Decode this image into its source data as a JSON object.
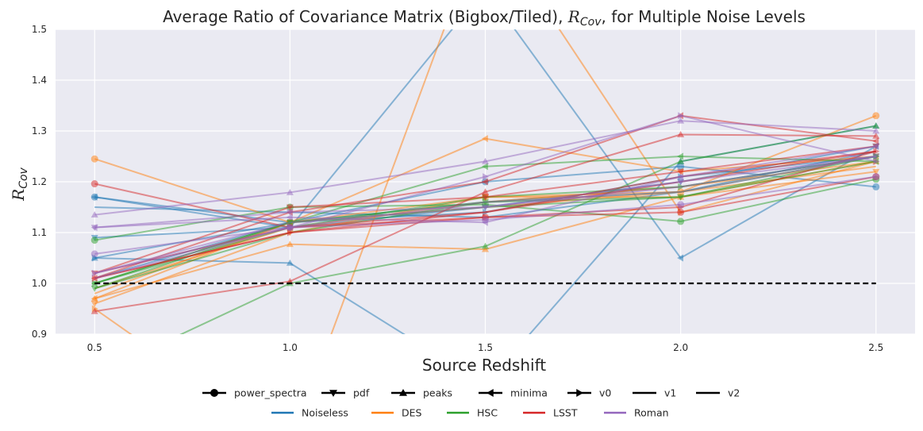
{
  "chart_data": {
    "type": "line",
    "title_main": "Average Ratio of Covariance Matrix (Bigbox/Tiled), ",
    "title_symbol": "R",
    "title_subscript": "Cov",
    "title_suffix": ", for Multiple Noise Levels",
    "xlabel": "Source Redshift",
    "ylabel_symbol": "R",
    "ylabel_subscript": "Cov",
    "x": [
      0.5,
      1.0,
      1.5,
      2.0,
      2.5
    ],
    "x_ticks": [
      "0.5",
      "1.0",
      "1.5",
      "2.0",
      "2.5"
    ],
    "y_ticks": [
      "0.9",
      "1.0",
      "1.1",
      "1.2",
      "1.3",
      "1.4",
      "1.5"
    ],
    "xlim": [
      0.4,
      2.6
    ],
    "ylim": [
      0.9,
      1.5
    ],
    "grid": true,
    "reference_line": {
      "y": 1.0,
      "style": "dashed",
      "color": "#000000"
    },
    "noise_colors": {
      "Noiseless": "#1f77b4",
      "DES": "#ff7f0e",
      "HSC": "#2ca02c",
      "LSST": "#d62728",
      "Roman": "#9467bd"
    },
    "legend_markers": [
      {
        "label": "power_spectra",
        "marker": "circle"
      },
      {
        "label": "pdf",
        "marker": "triangle-down"
      },
      {
        "label": "peaks",
        "marker": "triangle-up"
      },
      {
        "label": "minima",
        "marker": "triangle-left"
      },
      {
        "label": "v0",
        "marker": "triangle-right"
      },
      {
        "label": "v1",
        "marker": "none"
      },
      {
        "label": "v2",
        "marker": "none"
      }
    ],
    "legend_noise": [
      "Noiseless",
      "DES",
      "HSC",
      "LSST",
      "Roman"
    ],
    "legend_placement": "bottom-center",
    "series": [
      {
        "noise": "Noiseless",
        "statistic": "power_spectra",
        "marker": "circle",
        "values": [
          1.17,
          1.12,
          1.2,
          1.23,
          1.19
        ]
      },
      {
        "noise": "Noiseless",
        "statistic": "pdf",
        "marker": "triangle-down",
        "values": [
          1.09,
          1.11,
          1.15,
          1.2,
          1.27
        ]
      },
      {
        "noise": "Noiseless",
        "statistic": "peaks",
        "marker": "triangle-up",
        "values": [
          1.05,
          1.04,
          0.8,
          1.24,
          1.31
        ]
      },
      {
        "noise": "Noiseless",
        "statistic": "minima",
        "marker": "triangle-left",
        "values": [
          1.17,
          1.11,
          1.58,
          1.05,
          1.27
        ]
      },
      {
        "noise": "Noiseless",
        "statistic": "v0",
        "marker": "triangle-right",
        "values": [
          1.05,
          1.12,
          1.14,
          1.21,
          1.25
        ]
      },
      {
        "noise": "Noiseless",
        "statistic": "v1",
        "marker": "none",
        "values": [
          1.15,
          1.14,
          1.13,
          1.18,
          1.26
        ]
      },
      {
        "noise": "Noiseless",
        "statistic": "v2",
        "marker": "none",
        "values": [
          1.01,
          1.12,
          1.16,
          1.19,
          1.25
        ]
      },
      {
        "noise": "DES",
        "statistic": "power_spectra",
        "marker": "circle",
        "values": [
          1.245,
          1.12,
          1.17,
          1.18,
          1.33
        ]
      },
      {
        "noise": "DES",
        "statistic": "pdf",
        "marker": "triangle-down",
        "values": [
          0.96,
          1.1,
          1.17,
          1.17,
          1.22
        ]
      },
      {
        "noise": "DES",
        "statistic": "peaks",
        "marker": "triangle-up",
        "values": [
          0.97,
          1.077,
          1.067,
          1.17,
          1.24
        ]
      },
      {
        "noise": "DES",
        "statistic": "minima",
        "marker": "triangle-left",
        "values": [
          0.97,
          1.12,
          1.285,
          1.22,
          1.25
        ]
      },
      {
        "noise": "DES",
        "statistic": "v0",
        "marker": "triangle-right",
        "values": [
          0.95,
          0.68,
          1.72,
          1.14,
          1.24
        ]
      },
      {
        "noise": "DES",
        "statistic": "v1",
        "marker": "none",
        "values": [
          0.98,
          1.12,
          1.15,
          1.18,
          1.23
        ]
      },
      {
        "noise": "DES",
        "statistic": "v2",
        "marker": "none",
        "values": [
          0.99,
          1.11,
          1.16,
          1.19,
          1.24
        ]
      },
      {
        "noise": "HSC",
        "statistic": "power_spectra",
        "marker": "circle",
        "values": [
          1.085,
          1.15,
          1.155,
          1.122,
          1.205
        ]
      },
      {
        "noise": "HSC",
        "statistic": "pdf",
        "marker": "triangle-down",
        "values": [
          0.99,
          1.12,
          1.16,
          1.17,
          1.25
        ]
      },
      {
        "noise": "HSC",
        "statistic": "peaks",
        "marker": "triangle-up",
        "values": [
          0.82,
          1.0,
          1.073,
          1.24,
          1.31
        ]
      },
      {
        "noise": "HSC",
        "statistic": "minima",
        "marker": "triangle-left",
        "values": [
          1.0,
          1.12,
          1.23,
          1.25,
          1.24
        ]
      },
      {
        "noise": "HSC",
        "statistic": "v0",
        "marker": "triangle-right",
        "values": [
          1.0,
          1.11,
          1.17,
          1.19,
          1.25
        ]
      },
      {
        "noise": "HSC",
        "statistic": "v1",
        "marker": "none",
        "values": [
          1.0,
          1.12,
          1.15,
          1.17,
          1.24
        ]
      },
      {
        "noise": "HSC",
        "statistic": "v2",
        "marker": "none",
        "values": [
          0.99,
          1.1,
          1.16,
          1.18,
          1.25
        ]
      },
      {
        "noise": "LSST",
        "statistic": "power_spectra",
        "marker": "circle",
        "values": [
          1.196,
          1.11,
          1.13,
          1.14,
          1.21
        ]
      },
      {
        "noise": "LSST",
        "statistic": "pdf",
        "marker": "triangle-down",
        "values": [
          1.02,
          1.15,
          1.17,
          1.22,
          1.27
        ]
      },
      {
        "noise": "LSST",
        "statistic": "peaks",
        "marker": "triangle-up",
        "values": [
          0.945,
          1.004,
          1.18,
          1.293,
          1.29
        ]
      },
      {
        "noise": "LSST",
        "statistic": "minima",
        "marker": "triangle-left",
        "values": [
          1.01,
          1.14,
          1.2,
          1.33,
          1.28
        ]
      },
      {
        "noise": "LSST",
        "statistic": "v0",
        "marker": "triangle-right",
        "values": [
          1.01,
          1.1,
          1.13,
          1.15,
          1.26
        ]
      },
      {
        "noise": "LSST",
        "statistic": "v1",
        "marker": "none",
        "values": [
          1.01,
          1.1,
          1.14,
          1.2,
          1.26
        ]
      },
      {
        "noise": "LSST",
        "statistic": "v2",
        "marker": "none",
        "values": [
          1.02,
          1.11,
          1.14,
          1.21,
          1.26
        ]
      },
      {
        "noise": "Roman",
        "statistic": "power_spectra",
        "marker": "circle",
        "values": [
          1.058,
          1.11,
          1.125,
          1.155,
          1.21
        ]
      },
      {
        "noise": "Roman",
        "statistic": "pdf",
        "marker": "triangle-down",
        "values": [
          1.11,
          1.14,
          1.15,
          1.2,
          1.25
        ]
      },
      {
        "noise": "Roman",
        "statistic": "peaks",
        "marker": "triangle-up",
        "values": [
          1.135,
          1.179,
          1.24,
          1.32,
          1.3
        ]
      },
      {
        "noise": "Roman",
        "statistic": "minima",
        "marker": "triangle-left",
        "values": [
          1.11,
          1.13,
          1.12,
          1.21,
          1.27
        ]
      },
      {
        "noise": "Roman",
        "statistic": "v0",
        "marker": "triangle-right",
        "values": [
          1.02,
          1.11,
          1.21,
          1.33,
          1.24
        ]
      },
      {
        "noise": "Roman",
        "statistic": "v1",
        "marker": "none",
        "values": [
          1.02,
          1.12,
          1.15,
          1.19,
          1.25
        ]
      },
      {
        "noise": "Roman",
        "statistic": "v2",
        "marker": "none",
        "values": [
          1.01,
          1.11,
          1.16,
          1.18,
          1.25
        ]
      }
    ]
  }
}
